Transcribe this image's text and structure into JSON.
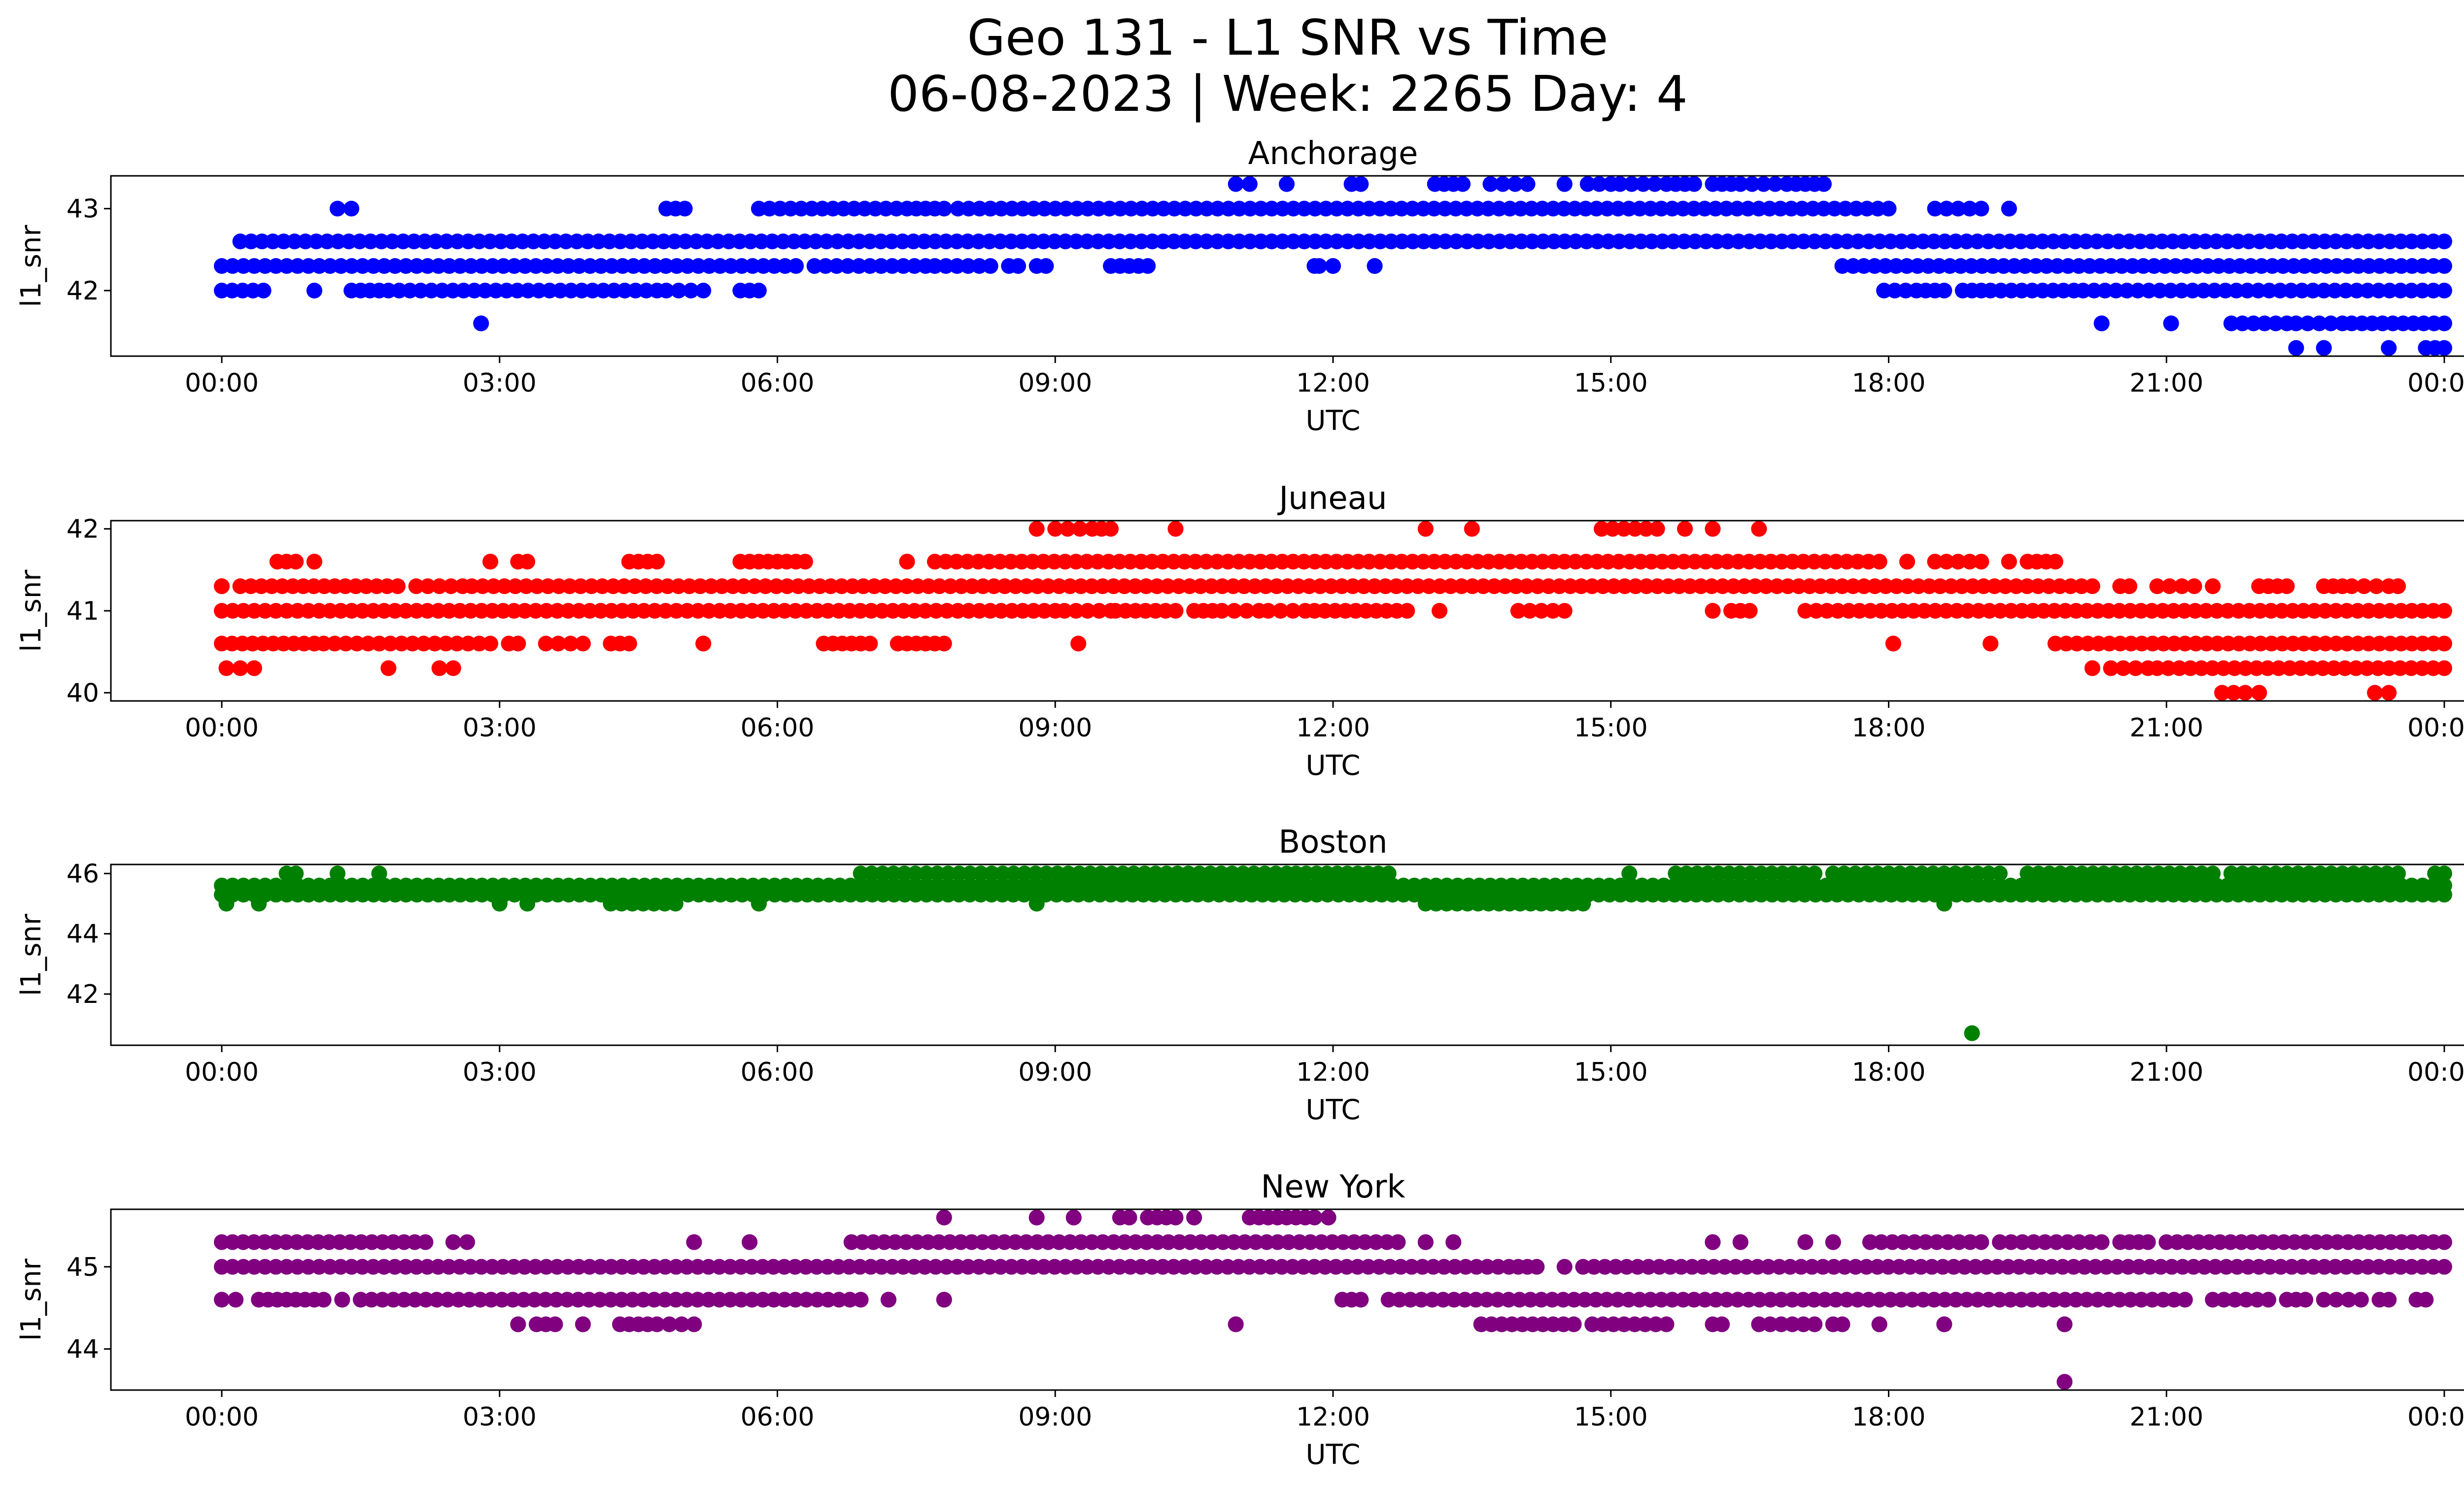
{
  "figure": {
    "title_line1": "Geo 131 - L1 SNR vs Time",
    "title_line2": "06-08-2023 | Week: 2265 Day: 4"
  },
  "chart_data": [
    {
      "type": "scatter",
      "title": "Anchorage",
      "xlabel": "UTC",
      "ylabel": "l1_snr",
      "color": "#0000ff",
      "xlim": [
        "23:30",
        "00:30"
      ],
      "x_ticks": [
        "00:00",
        "03:00",
        "06:00",
        "09:00",
        "12:00",
        "15:00",
        "18:00",
        "21:00",
        "00:00"
      ],
      "y_ticks": [
        42,
        43
      ],
      "ylim": [
        41.2,
        43.4
      ],
      "levels": [
        41.3,
        41.6,
        42.0,
        42.3,
        42.6,
        43.0,
        43.3
      ],
      "series": [
        {
          "y": 41.3,
          "segments": [
            [
              22.4,
              22.4
            ],
            [
              22.7,
              22.7
            ],
            [
              23.4,
              23.4
            ],
            [
              23.8,
              24.0
            ]
          ]
        },
        {
          "y": 41.6,
          "segments": [
            [
              2.8,
              2.8
            ],
            [
              20.3,
              20.3
            ],
            [
              21.05,
              21.05
            ],
            [
              21.7,
              22.3
            ],
            [
              22.4,
              22.9
            ],
            [
              23.0,
              24.0
            ]
          ]
        },
        {
          "y": 42.0,
          "segments": [
            [
              0.0,
              0.45
            ],
            [
              1.0,
              1.0
            ],
            [
              1.4,
              1.7
            ],
            [
              1.8,
              4.7
            ],
            [
              4.8,
              5.2
            ],
            [
              5.6,
              5.8
            ],
            [
              17.95,
              18.3
            ],
            [
              18.4,
              18.6
            ],
            [
              18.8,
              19.0
            ],
            [
              19.1,
              20.0
            ],
            [
              20.1,
              24.0
            ]
          ]
        },
        {
          "y": 42.3,
          "segments": [
            [
              0.0,
              6.2
            ],
            [
              6.4,
              7.6
            ],
            [
              7.7,
              8.3
            ],
            [
              8.5,
              8.6
            ],
            [
              8.8,
              8.9
            ],
            [
              9.6,
              9.8
            ],
            [
              9.9,
              10.0
            ],
            [
              11.8,
              11.85
            ],
            [
              12.0,
              12.0
            ],
            [
              12.45,
              12.45
            ],
            [
              17.5,
              24.0
            ]
          ]
        },
        {
          "y": 42.6,
          "segments": [
            [
              0.2,
              24.0
            ]
          ]
        },
        {
          "y": 43.0,
          "segments": [
            [
              1.25,
              1.4
            ],
            [
              4.8,
              5.0
            ],
            [
              5.8,
              7.4
            ],
            [
              7.5,
              7.8
            ],
            [
              7.95,
              8.3
            ],
            [
              8.3,
              18.0
            ],
            [
              18.5,
              19.0
            ],
            [
              19.3,
              19.3
            ]
          ]
        },
        {
          "y": 43.3,
          "segments": [
            [
              10.95,
              11.1
            ],
            [
              11.5,
              11.5
            ],
            [
              12.2,
              12.3
            ],
            [
              13.1,
              13.4
            ],
            [
              13.7,
              14.1
            ],
            [
              14.5,
              14.5
            ],
            [
              14.75,
              15.0
            ],
            [
              15.1,
              15.6
            ],
            [
              15.7,
              15.9
            ],
            [
              16.1,
              16.3
            ],
            [
              16.4,
              16.9
            ],
            [
              17.0,
              17.3
            ]
          ]
        }
      ]
    },
    {
      "type": "scatter",
      "title": "Juneau",
      "xlabel": "UTC",
      "ylabel": "l1_snr",
      "color": "#ff0000",
      "xlim": [
        "23:30",
        "00:30"
      ],
      "x_ticks": [
        "00:00",
        "03:00",
        "06:00",
        "09:00",
        "12:00",
        "15:00",
        "18:00",
        "21:00",
        "00:00"
      ],
      "y_ticks": [
        40,
        41,
        42
      ],
      "ylim": [
        39.9,
        42.1
      ],
      "levels": [
        40.0,
        40.3,
        40.6,
        41.0,
        41.3,
        41.6,
        42.0
      ],
      "series": [
        {
          "y": 40.0,
          "segments": [
            [
              21.6,
              21.85
            ],
            [
              22.0,
              22.0
            ],
            [
              23.25,
              23.4
            ]
          ]
        },
        {
          "y": 40.3,
          "segments": [
            [
              0.05,
              0.2
            ],
            [
              0.35,
              0.35
            ],
            [
              1.8,
              1.8
            ],
            [
              2.35,
              2.5
            ],
            [
              20.2,
              20.2
            ],
            [
              20.4,
              20.8
            ],
            [
              20.9,
              24.0
            ]
          ]
        },
        {
          "y": 40.6,
          "segments": [
            [
              0.0,
              1.0
            ],
            [
              1.1,
              2.9
            ],
            [
              3.1,
              3.2
            ],
            [
              3.5,
              3.9
            ],
            [
              4.2,
              4.4
            ],
            [
              5.2,
              5.2
            ],
            [
              6.5,
              6.8
            ],
            [
              6.9,
              7.0
            ],
            [
              7.3,
              7.5
            ],
            [
              7.6,
              7.8
            ],
            [
              9.25,
              9.25
            ],
            [
              18.05,
              18.05
            ],
            [
              19.1,
              19.1
            ],
            [
              19.8,
              24.0
            ]
          ]
        },
        {
          "y": 41.0,
          "segments": [
            [
              0.0,
              9.0
            ],
            [
              9.1,
              9.6
            ],
            [
              9.65,
              10.3
            ],
            [
              10.5,
              10.7
            ],
            [
              10.8,
              11.2
            ],
            [
              11.3,
              11.7
            ],
            [
              11.8,
              12.8
            ],
            [
              13.15,
              13.15
            ],
            [
              14.0,
              14.5
            ],
            [
              16.1,
              16.1
            ],
            [
              16.3,
              16.5
            ],
            [
              17.1,
              24.0
            ]
          ]
        },
        {
          "y": 41.3,
          "segments": [
            [
              0.0,
              0.0
            ],
            [
              0.2,
              1.9
            ],
            [
              2.1,
              2.6
            ],
            [
              2.7,
              20.2
            ],
            [
              20.5,
              20.6
            ],
            [
              20.9,
              21.3
            ],
            [
              21.5,
              21.5
            ],
            [
              22.0,
              22.3
            ],
            [
              22.7,
              22.9
            ],
            [
              23.0,
              23.4
            ],
            [
              23.5,
              23.5
            ]
          ]
        },
        {
          "y": 41.6,
          "segments": [
            [
              0.6,
              0.8
            ],
            [
              1.0,
              1.0
            ],
            [
              2.9,
              2.9
            ],
            [
              3.2,
              3.3
            ],
            [
              4.4,
              4.7
            ],
            [
              5.6,
              5.9
            ],
            [
              6.0,
              6.3
            ],
            [
              7.4,
              7.4
            ],
            [
              7.7,
              17.9
            ],
            [
              18.2,
              18.2
            ],
            [
              18.5,
              19.0
            ],
            [
              19.3,
              19.3
            ],
            [
              19.5,
              19.8
            ]
          ]
        },
        {
          "y": 42.0,
          "segments": [
            [
              8.8,
              8.8
            ],
            [
              9.0,
              9.4
            ],
            [
              9.5,
              9.6
            ],
            [
              10.3,
              10.3
            ],
            [
              13.0,
              13.0
            ],
            [
              13.5,
              13.5
            ],
            [
              14.9,
              15.5
            ],
            [
              15.8,
              15.8
            ],
            [
              16.1,
              16.1
            ],
            [
              16.6,
              16.6
            ]
          ]
        }
      ]
    },
    {
      "type": "scatter",
      "title": "Boston",
      "xlabel": "UTC",
      "ylabel": "l1_snr",
      "color": "#008000",
      "xlim": [
        "23:30",
        "00:30"
      ],
      "x_ticks": [
        "00:00",
        "03:00",
        "06:00",
        "09:00",
        "12:00",
        "15:00",
        "18:00",
        "21:00",
        "00:00"
      ],
      "y_ticks": [
        42,
        44,
        46
      ],
      "ylim": [
        40.3,
        46.3
      ],
      "levels": [
        40.7,
        45.0,
        45.3,
        45.6,
        46.0
      ],
      "series": [
        {
          "y": 40.7,
          "segments": [
            [
              18.9,
              18.9
            ]
          ]
        },
        {
          "y": 45.0,
          "segments": [
            [
              0.05,
              0.05
            ],
            [
              0.4,
              0.4
            ],
            [
              3.0,
              3.0
            ],
            [
              3.3,
              3.3
            ],
            [
              4.2,
              4.9
            ],
            [
              5.8,
              5.8
            ],
            [
              8.8,
              8.8
            ],
            [
              13.0,
              14.7
            ],
            [
              18.6,
              18.6
            ]
          ]
        },
        {
          "y": 45.3,
          "segments": [
            [
              0.0,
              24.0
            ]
          ]
        },
        {
          "y": 45.6,
          "segments": [
            [
              0.0,
              24.0
            ]
          ]
        },
        {
          "y": 46.0,
          "segments": [
            [
              0.7,
              0.8
            ],
            [
              1.25,
              1.25
            ],
            [
              1.7,
              1.7
            ],
            [
              6.9,
              11.5
            ],
            [
              11.6,
              12.6
            ],
            [
              15.2,
              15.2
            ],
            [
              15.7,
              17.2
            ],
            [
              17.4,
              19.2
            ],
            [
              19.5,
              21.5
            ],
            [
              21.7,
              23.5
            ],
            [
              23.9,
              24.0
            ]
          ]
        }
      ]
    },
    {
      "type": "scatter",
      "title": "New York",
      "xlabel": "UTC",
      "ylabel": "l1_snr",
      "color": "#800080",
      "xlim": [
        "23:30",
        "00:30"
      ],
      "x_ticks": [
        "00:00",
        "03:00",
        "06:00",
        "09:00",
        "12:00",
        "15:00",
        "18:00",
        "21:00",
        "00:00"
      ],
      "y_ticks": [
        44,
        45
      ],
      "ylim": [
        43.5,
        45.7
      ],
      "levels": [
        43.6,
        44.3,
        44.6,
        45.0,
        45.3,
        45.6
      ],
      "series": [
        {
          "y": 43.6,
          "segments": [
            [
              19.9,
              19.9
            ]
          ]
        },
        {
          "y": 44.3,
          "segments": [
            [
              3.2,
              3.2
            ],
            [
              3.4,
              3.6
            ],
            [
              3.9,
              3.9
            ],
            [
              4.3,
              4.6
            ],
            [
              4.7,
              5.1
            ],
            [
              10.95,
              10.95
            ],
            [
              13.6,
              14.6
            ],
            [
              14.8,
              15.6
            ],
            [
              16.1,
              16.2
            ],
            [
              16.6,
              17.2
            ],
            [
              17.4,
              17.5
            ],
            [
              17.9,
              17.9
            ],
            [
              18.6,
              18.6
            ],
            [
              19.9,
              19.9
            ]
          ]
        },
        {
          "y": 44.6,
          "segments": [
            [
              0.0,
              0.15
            ],
            [
              0.4,
              0.7
            ],
            [
              0.8,
              1.1
            ],
            [
              1.3,
              1.3
            ],
            [
              1.5,
              6.9
            ],
            [
              7.2,
              7.2
            ],
            [
              7.8,
              7.8
            ],
            [
              12.1,
              12.3
            ],
            [
              12.6,
              21.2
            ],
            [
              21.5,
              22.1
            ],
            [
              22.3,
              22.5
            ],
            [
              22.7,
              23.1
            ],
            [
              23.3,
              23.4
            ],
            [
              23.7,
              23.8
            ]
          ]
        },
        {
          "y": 45.0,
          "segments": [
            [
              0.0,
              13.9
            ],
            [
              14.0,
              14.2
            ],
            [
              14.5,
              14.5
            ],
            [
              14.7,
              24.0
            ]
          ]
        },
        {
          "y": 45.3,
          "segments": [
            [
              0.0,
              2.2
            ],
            [
              2.5,
              2.65
            ],
            [
              5.1,
              5.1
            ],
            [
              5.7,
              5.7
            ],
            [
              6.8,
              12.7
            ],
            [
              13.0,
              13.0
            ],
            [
              13.3,
              13.3
            ],
            [
              16.1,
              16.1
            ],
            [
              16.4,
              16.4
            ],
            [
              17.1,
              17.1
            ],
            [
              17.4,
              17.4
            ],
            [
              17.8,
              19.0
            ],
            [
              19.2,
              20.3
            ],
            [
              20.5,
              20.8
            ],
            [
              21.0,
              24.0
            ]
          ]
        },
        {
          "y": 45.6,
          "segments": [
            [
              7.8,
              7.8
            ],
            [
              8.8,
              8.8
            ],
            [
              9.2,
              9.2
            ],
            [
              9.7,
              9.8
            ],
            [
              10.0,
              10.3
            ],
            [
              10.5,
              10.5
            ],
            [
              11.1,
              11.4
            ],
            [
              11.5,
              11.8
            ],
            [
              11.95,
              11.95
            ]
          ]
        }
      ]
    }
  ]
}
